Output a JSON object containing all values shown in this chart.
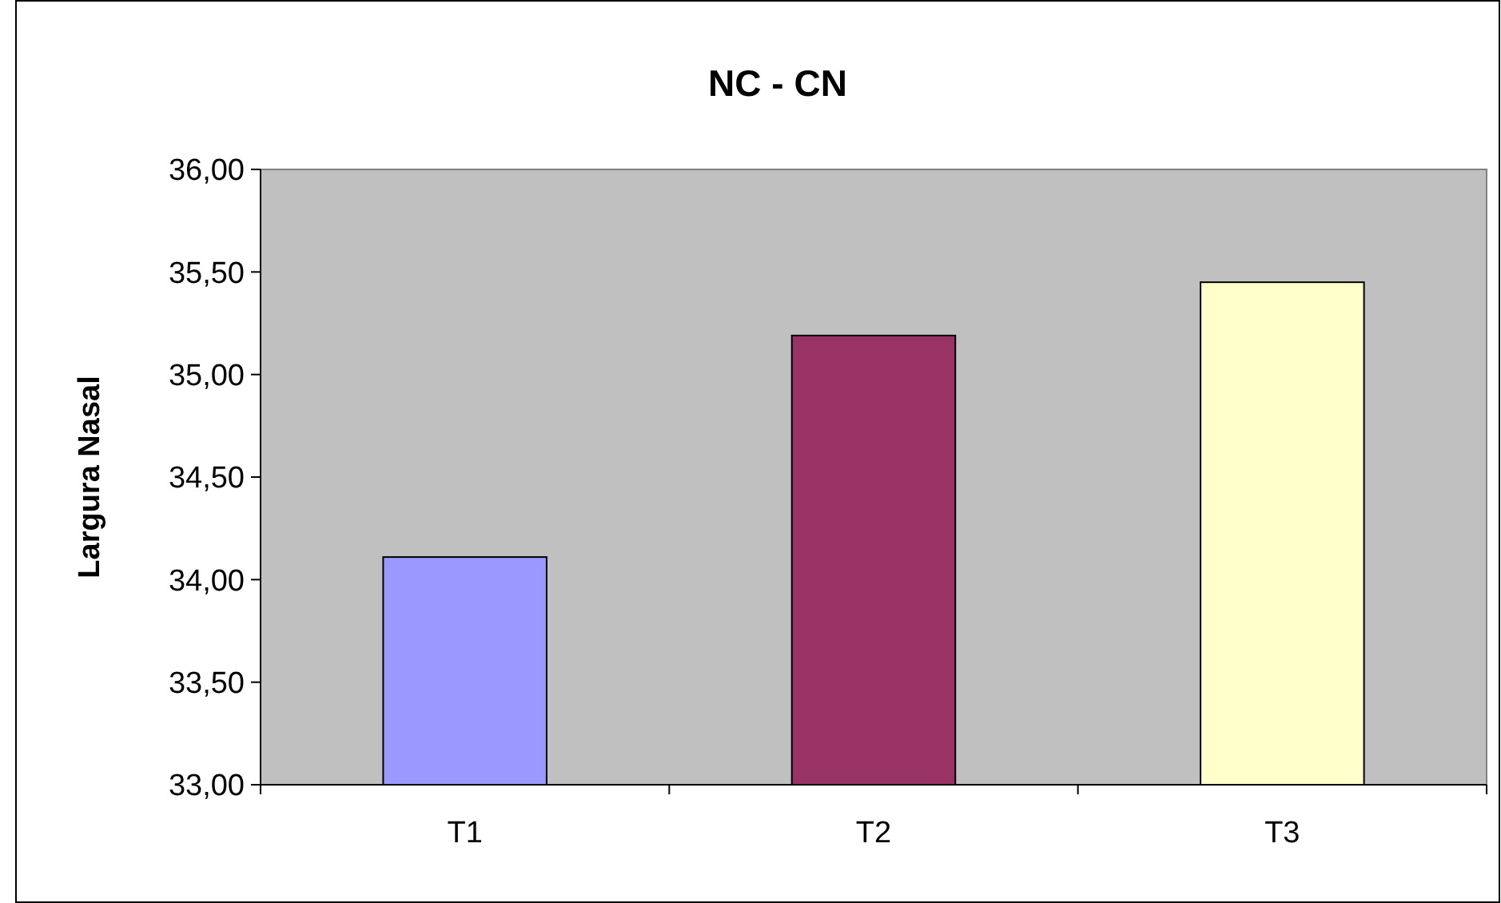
{
  "chart_data": {
    "type": "bar",
    "title": "NC - CN",
    "ylabel": "Largura Nasal",
    "categories": [
      "T1",
      "T2",
      "T3"
    ],
    "values": [
      34.11,
      35.19,
      35.45
    ],
    "colors": [
      "#9999ff",
      "#993366",
      "#ffffcc"
    ],
    "ylim": [
      33,
      36
    ],
    "yticks": [
      {
        "value": 33,
        "label": "33,00"
      },
      {
        "value": 33.5,
        "label": "33,50"
      },
      {
        "value": 34,
        "label": "34,00"
      },
      {
        "value": 34.5,
        "label": "34,50"
      },
      {
        "value": 35,
        "label": "35,00"
      },
      {
        "value": 35.5,
        "label": "35,50"
      },
      {
        "value": 36,
        "label": "36,00"
      }
    ],
    "grid": false
  }
}
